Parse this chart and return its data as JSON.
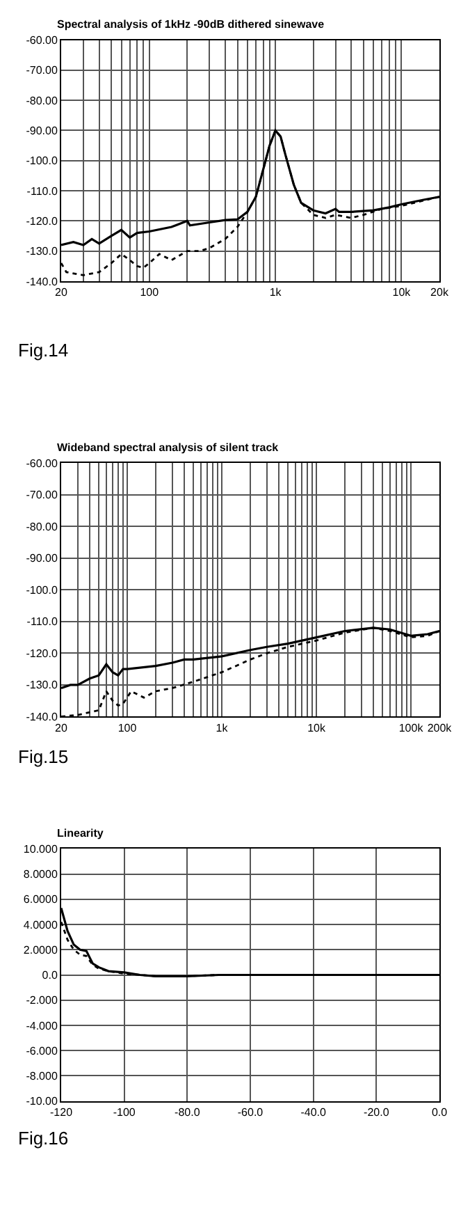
{
  "chart_data": [
    {
      "type": "line",
      "title": "Spectral analysis of 1kHz -90dB dithered sinewave",
      "annotations": [
        "Fig.14"
      ],
      "log": "x",
      "grid": true,
      "marker": "none",
      "xlim": [
        20,
        20000
      ],
      "xticks": [
        20,
        {
          "value": 30,
          "label": null
        },
        {
          "value": 40,
          "label": null
        },
        {
          "value": 50,
          "label": null
        },
        {
          "value": 60,
          "label": null
        },
        {
          "value": 70,
          "label": null
        },
        {
          "value": 80,
          "label": null
        },
        {
          "value": 90,
          "label": null
        },
        100,
        {
          "value": 200,
          "label": null
        },
        {
          "value": 300,
          "label": null
        },
        {
          "value": 400,
          "label": null
        },
        {
          "value": 500,
          "label": null
        },
        {
          "value": 600,
          "label": null
        },
        {
          "value": 700,
          "label": null
        },
        {
          "value": 800,
          "label": null
        },
        {
          "value": 900,
          "label": null
        },
        {
          "value": 1000,
          "label": "1k"
        },
        {
          "value": 2000,
          "label": null
        },
        {
          "value": 3000,
          "label": null
        },
        {
          "value": 4000,
          "label": null
        },
        {
          "value": 5000,
          "label": null
        },
        {
          "value": 6000,
          "label": null
        },
        {
          "value": 7000,
          "label": null
        },
        {
          "value": 8000,
          "label": null
        },
        {
          "value": 9000,
          "label": null
        },
        {
          "value": 10000,
          "label": "10k"
        },
        {
          "value": 20000,
          "label": "20k"
        }
      ],
      "ylim": [
        -140,
        -60
      ],
      "yticks": [
        {
          "value": -60,
          "label": "-60.00"
        },
        {
          "value": -70,
          "label": "-70.00"
        },
        {
          "value": -80,
          "label": "-80.00"
        },
        {
          "value": -90,
          "label": "-90.00"
        },
        {
          "value": -100,
          "label": "-100.0"
        },
        {
          "value": -110,
          "label": "-110.0"
        },
        {
          "value": -120,
          "label": "-120.0"
        },
        {
          "value": -130,
          "label": "-130.0"
        },
        {
          "value": -140,
          "label": "-140.0"
        }
      ],
      "series": [
        {
          "color": "#000000",
          "line_style": "solid",
          "x": [
            20,
            25,
            30,
            35,
            40,
            50,
            60,
            70,
            80,
            100,
            150,
            200,
            210,
            300,
            400,
            500,
            600,
            700,
            800,
            900,
            1000,
            1100,
            1200,
            1400,
            1600,
            2000,
            2500,
            3000,
            3200,
            4000,
            6000,
            8000,
            10000,
            15000,
            20000
          ],
          "values": [
            -128,
            -127,
            -128,
            -126,
            -127.5,
            -125,
            -123,
            -125.5,
            -124,
            -123.5,
            -122,
            -120,
            -121.5,
            -120.5,
            -119.7,
            -119.5,
            -117,
            -112,
            -103,
            -95,
            -90,
            -92,
            -98,
            -108,
            -114,
            -116.5,
            -117.5,
            -116,
            -117,
            -117,
            -116.5,
            -115.5,
            -114.5,
            -113,
            -112
          ]
        },
        {
          "color": "#000000",
          "line_style": "dotted",
          "x": [
            20,
            22,
            30,
            40,
            50,
            60,
            70,
            80,
            90,
            100,
            120,
            150,
            200,
            250,
            300,
            400,
            500,
            600,
            700,
            800,
            900,
            1000,
            1100,
            1200,
            1400,
            1600,
            2000,
            2500,
            3000,
            4000,
            5000,
            7000,
            10000,
            20000
          ],
          "values": [
            -134,
            -137,
            -138,
            -137,
            -134,
            -131,
            -133,
            -135,
            -135.5,
            -134,
            -131,
            -133,
            -130,
            -130,
            -129,
            -126,
            -122,
            -117,
            -112,
            -103,
            -95,
            -90,
            -92,
            -98,
            -108,
            -114,
            -118,
            -119,
            -118,
            -119,
            -118,
            -116,
            -115,
            -112
          ]
        }
      ]
    },
    {
      "type": "line",
      "title": "Wideband spectral analysis of silent track",
      "annotations": [
        "Fig.15"
      ],
      "log": "x",
      "grid": true,
      "marker": "none",
      "xlim": [
        20,
        200000
      ],
      "xticks": [
        20,
        {
          "value": 30,
          "label": null
        },
        {
          "value": 40,
          "label": null
        },
        {
          "value": 50,
          "label": null
        },
        {
          "value": 60,
          "label": null
        },
        {
          "value": 70,
          "label": null
        },
        {
          "value": 80,
          "label": null
        },
        {
          "value": 90,
          "label": null
        },
        100,
        {
          "value": 200,
          "label": null
        },
        {
          "value": 300,
          "label": null
        },
        {
          "value": 400,
          "label": null
        },
        {
          "value": 500,
          "label": null
        },
        {
          "value": 600,
          "label": null
        },
        {
          "value": 700,
          "label": null
        },
        {
          "value": 800,
          "label": null
        },
        {
          "value": 900,
          "label": null
        },
        {
          "value": 1000,
          "label": "1k"
        },
        {
          "value": 2000,
          "label": null
        },
        {
          "value": 3000,
          "label": null
        },
        {
          "value": 4000,
          "label": null
        },
        {
          "value": 5000,
          "label": null
        },
        {
          "value": 6000,
          "label": null
        },
        {
          "value": 7000,
          "label": null
        },
        {
          "value": 8000,
          "label": null
        },
        {
          "value": 9000,
          "label": null
        },
        {
          "value": 10000,
          "label": "10k"
        },
        {
          "value": 20000,
          "label": null
        },
        {
          "value": 30000,
          "label": null
        },
        {
          "value": 40000,
          "label": null
        },
        {
          "value": 50000,
          "label": null
        },
        {
          "value": 60000,
          "label": null
        },
        {
          "value": 70000,
          "label": null
        },
        {
          "value": 80000,
          "label": null
        },
        {
          "value": 90000,
          "label": null
        },
        {
          "value": 100000,
          "label": "100k"
        },
        {
          "value": 200000,
          "label": "200k"
        }
      ],
      "ylim": [
        -140,
        -60
      ],
      "yticks": [
        {
          "value": -60,
          "label": "-60.00"
        },
        {
          "value": -70,
          "label": "-70.00"
        },
        {
          "value": -80,
          "label": "-80.00"
        },
        {
          "value": -90,
          "label": "-90.00"
        },
        {
          "value": -100,
          "label": "-100.0"
        },
        {
          "value": -110,
          "label": "-110.0"
        },
        {
          "value": -120,
          "label": "-120.0"
        },
        {
          "value": -130,
          "label": "-130.0"
        },
        {
          "value": -140,
          "label": "-140.0"
        }
      ],
      "series": [
        {
          "color": "#000000",
          "line_style": "solid",
          "x": [
            20,
            25,
            30,
            40,
            50,
            60,
            70,
            80,
            90,
            100,
            200,
            300,
            400,
            500,
            1000,
            2000,
            3000,
            5000,
            10000,
            20000,
            40000,
            60000,
            100000,
            150000,
            200000
          ],
          "values": [
            -131,
            -130,
            -130,
            -128,
            -127,
            -123.5,
            -126,
            -127,
            -125,
            -125,
            -124,
            -123,
            -122,
            -122,
            -121,
            -119,
            -118,
            -117,
            -115,
            -113,
            -112,
            -112.5,
            -114.5,
            -114,
            -113
          ]
        },
        {
          "color": "#000000",
          "line_style": "dotted",
          "x": [
            20,
            30,
            50,
            60,
            70,
            80,
            90,
            110,
            150,
            200,
            300,
            500,
            1000,
            2000,
            3000,
            5000,
            10000,
            20000,
            40000,
            60000,
            100000,
            150000,
            200000
          ],
          "values": [
            -140,
            -139.5,
            -138,
            -132,
            -135,
            -136.5,
            -136,
            -132,
            -134,
            -132,
            -131,
            -129,
            -126,
            -122,
            -120,
            -118,
            -116,
            -113.5,
            -112,
            -113,
            -115,
            -114.5,
            -113
          ]
        }
      ]
    },
    {
      "type": "line",
      "title": "Linearity",
      "annotations": [
        "Fig.16"
      ],
      "grid": true,
      "marker": "none",
      "xlim": [
        -120,
        0
      ],
      "xticks": [
        -120,
        -100,
        {
          "value": -80,
          "label": "-80.0"
        },
        {
          "value": -60,
          "label": "-60.0"
        },
        {
          "value": -40,
          "label": "-40.0"
        },
        {
          "value": -20,
          "label": "-20.0"
        },
        {
          "value": 0,
          "label": "0.0"
        }
      ],
      "ylim": [
        -10,
        10
      ],
      "yticks": [
        {
          "value": 10,
          "label": "10.000"
        },
        {
          "value": 8,
          "label": "8.0000"
        },
        {
          "value": 6,
          "label": "6.0000"
        },
        {
          "value": 4,
          "label": "4.0000"
        },
        {
          "value": 2,
          "label": "2.0000"
        },
        {
          "value": 0,
          "label": "0.0"
        },
        {
          "value": -2,
          "label": "-2.000"
        },
        {
          "value": -4,
          "label": "-4.000"
        },
        {
          "value": -6,
          "label": "-6.000"
        },
        {
          "value": -8,
          "label": "-8.000"
        },
        {
          "value": -10,
          "label": "-10.00"
        }
      ],
      "series": [
        {
          "color": "#000000",
          "line_style": "solid",
          "x": [
            -120,
            -118,
            -116,
            -114,
            -112,
            -110,
            -108,
            -105,
            -100,
            -95,
            -90,
            -85,
            -80,
            -70,
            -40,
            0
          ],
          "values": [
            5.3,
            3.5,
            2.4,
            2,
            1.9,
            0.9,
            0.6,
            0.3,
            0.2,
            0,
            -0.1,
            -0.1,
            -0.1,
            0,
            0,
            0
          ]
        },
        {
          "color": "#000000",
          "line_style": "dotted",
          "x": [
            -120,
            -118,
            -116,
            -114,
            -112,
            -110,
            -108,
            -105,
            -100,
            -95,
            -90,
            -80,
            -70,
            0
          ],
          "values": [
            4.2,
            2.8,
            2,
            1.6,
            1.5,
            0.8,
            0.5,
            0.3,
            0.1,
            0,
            -0.1,
            -0.1,
            0,
            0
          ]
        }
      ]
    }
  ]
}
